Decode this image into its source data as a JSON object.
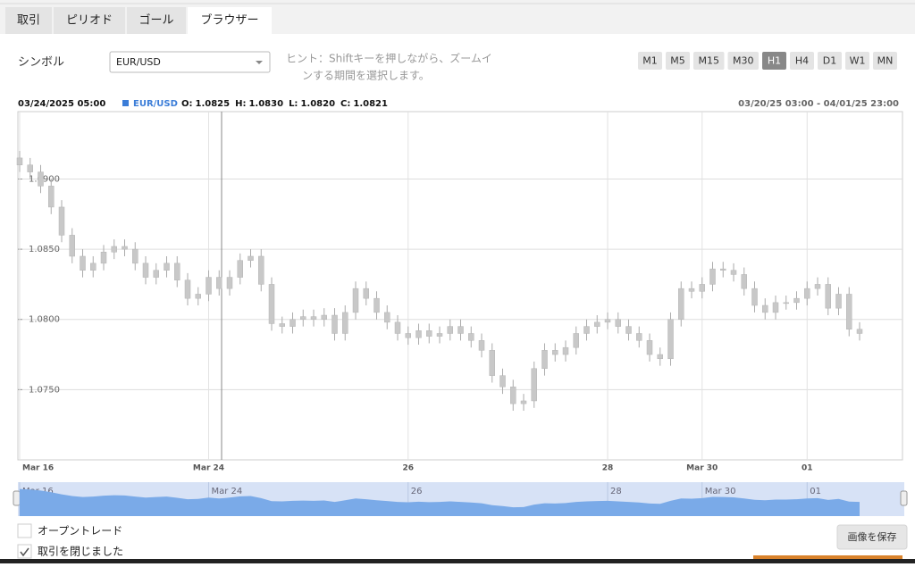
{
  "tabs": [
    "取引",
    "ピリオド",
    "ゴール",
    "ブラウザー"
  ],
  "active_tab": 3,
  "symbol_label": "シンボル",
  "symbol": "EUR/USD",
  "hint": [
    "ヒント：Shiftキーを押しながら、ズームイ",
    "ンする期間を選択します。"
  ],
  "timeframes": [
    "M1",
    "M5",
    "M15",
    "M30",
    "H1",
    "H4",
    "D1",
    "W1",
    "MN"
  ],
  "active_timeframe": 4,
  "info": {
    "date": "03/24/2025 05:00",
    "symbol": "EUR/USD",
    "fields": [
      {
        "label": "O:",
        "value": "1.0825"
      },
      {
        "label": "H:",
        "value": "1.0830"
      },
      {
        "label": "L:",
        "value": "1.0820"
      },
      {
        "label": "C:",
        "value": "1.0821"
      }
    ],
    "range": "03/20/25 03:00 - 04/01/25 23:00"
  },
  "chart": {
    "type": "candlestick",
    "color": "#c8c8c8",
    "navigator_color": "#7aaae8",
    "categories": [
      "Mar 16",
      null,
      null,
      null,
      null,
      null,
      null,
      null,
      null,
      null,
      null,
      null,
      null,
      null,
      null,
      null,
      null,
      null,
      "Mar 24",
      null,
      null,
      null,
      null,
      null,
      null,
      null,
      null,
      null,
      null,
      null,
      null,
      null,
      null,
      null,
      null,
      null,
      null,
      "26",
      null,
      null,
      null,
      null,
      null,
      null,
      null,
      null,
      null,
      null,
      null,
      null,
      null,
      null,
      null,
      null,
      null,
      null,
      "28",
      null,
      null,
      null,
      null,
      null,
      null,
      null,
      null,
      "Mar 30",
      null,
      null,
      null,
      null,
      null,
      null,
      null,
      null,
      null,
      "01",
      null,
      null,
      null,
      null,
      null
    ],
    "open": [
      1.0915,
      1.091,
      1.0905,
      1.0895,
      1.088,
      1.086,
      1.0845,
      1.0835,
      1.084,
      1.0848,
      1.0852,
      1.085,
      1.084,
      1.083,
      1.0835,
      1.084,
      1.0828,
      1.0815,
      1.0818,
      1.083,
      1.0822,
      1.083,
      1.0842,
      1.0845,
      1.0825,
      1.0797,
      1.0795,
      1.08,
      1.0802,
      1.08,
      1.0803,
      1.079,
      1.0805,
      1.0822,
      1.0815,
      1.0805,
      1.0798,
      1.079,
      1.0787,
      1.0792,
      1.0788,
      1.079,
      1.0795,
      1.079,
      1.0785,
      1.0778,
      1.076,
      1.0752,
      1.074,
      1.0742,
      1.0765,
      1.0778,
      1.0775,
      1.078,
      1.079,
      1.0795,
      1.0798,
      1.08,
      1.0795,
      1.079,
      1.0785,
      1.0775,
      1.0772,
      1.08,
      1.0822,
      1.082,
      1.0825,
      1.0836,
      1.0835,
      1.0832,
      1.0822,
      1.081,
      1.0805,
      1.0812,
      1.0812,
      1.0815,
      1.0822,
      1.0825,
      1.0808,
      1.0818,
      1.0793
    ],
    "high": [
      1.092,
      1.0915,
      1.091,
      1.09,
      1.0885,
      1.0865,
      1.085,
      1.0845,
      1.0853,
      1.0857,
      1.0857,
      1.0855,
      1.0845,
      1.084,
      1.0845,
      1.0845,
      1.0833,
      1.0823,
      1.0835,
      1.0835,
      1.0835,
      1.0847,
      1.085,
      1.085,
      1.083,
      1.0802,
      1.0805,
      1.0807,
      1.0807,
      1.0808,
      1.0808,
      1.081,
      1.0827,
      1.0827,
      1.082,
      1.081,
      1.0803,
      1.0795,
      1.0797,
      1.0797,
      1.0795,
      1.08,
      1.08,
      1.0795,
      1.079,
      1.0783,
      1.0765,
      1.0757,
      1.0747,
      1.077,
      1.0783,
      1.0783,
      1.0785,
      1.0795,
      1.08,
      1.0803,
      1.0805,
      1.0805,
      1.08,
      1.0795,
      1.079,
      1.078,
      1.0805,
      1.0827,
      1.0827,
      1.083,
      1.0841,
      1.0841,
      1.084,
      1.0837,
      1.0827,
      1.0815,
      1.0817,
      1.0817,
      1.082,
      1.0827,
      1.083,
      1.083,
      1.0823,
      1.0823,
      1.0798
    ],
    "low": [
      1.0905,
      1.09,
      1.089,
      1.0875,
      1.0855,
      1.084,
      1.083,
      1.083,
      1.0835,
      1.0843,
      1.0845,
      1.0835,
      1.0825,
      1.0825,
      1.083,
      1.0823,
      1.081,
      1.081,
      1.0813,
      1.0817,
      1.0817,
      1.0825,
      1.0837,
      1.082,
      1.0792,
      1.079,
      1.079,
      1.0795,
      1.0795,
      1.0795,
      1.0785,
      1.0785,
      1.08,
      1.081,
      1.08,
      1.0793,
      1.0785,
      1.0782,
      1.0782,
      1.0783,
      1.0783,
      1.0785,
      1.0785,
      1.078,
      1.0773,
      1.0755,
      1.0747,
      1.0735,
      1.0735,
      1.0737,
      1.076,
      1.077,
      1.077,
      1.0775,
      1.0785,
      1.079,
      1.0793,
      1.079,
      1.0785,
      1.078,
      1.077,
      1.0767,
      1.0767,
      1.0795,
      1.0815,
      1.0815,
      1.082,
      1.083,
      1.0827,
      1.0817,
      1.0805,
      1.08,
      1.08,
      1.0807,
      1.0807,
      1.081,
      1.0817,
      1.0803,
      1.0803,
      1.0788,
      1.0785
    ],
    "close": [
      1.091,
      1.0905,
      1.0895,
      1.088,
      1.086,
      1.0845,
      1.0835,
      1.084,
      1.0848,
      1.0852,
      1.085,
      1.084,
      1.083,
      1.0835,
      1.084,
      1.0828,
      1.0815,
      1.0818,
      1.083,
      1.0822,
      1.083,
      1.0842,
      1.0845,
      1.0825,
      1.0797,
      1.0795,
      1.08,
      1.0802,
      1.08,
      1.0803,
      1.079,
      1.0805,
      1.0822,
      1.0815,
      1.0805,
      1.0798,
      1.079,
      1.0787,
      1.0792,
      1.0788,
      1.079,
      1.0795,
      1.079,
      1.0785,
      1.0778,
      1.076,
      1.0752,
      1.074,
      1.0742,
      1.0765,
      1.0778,
      1.0775,
      1.078,
      1.079,
      1.0795,
      1.0798,
      1.08,
      1.0795,
      1.079,
      1.0785,
      1.0775,
      1.0772,
      1.08,
      1.0822,
      1.082,
      1.0825,
      1.0836,
      1.0835,
      1.0832,
      1.0822,
      1.081,
      1.0805,
      1.0812,
      1.0812,
      1.0815,
      1.0822,
      1.0825,
      1.0808,
      1.0818,
      1.0793,
      1.079
    ],
    "ylim": [
      1.07,
      1.0948
    ],
    "yticks": [
      {
        "value": 1.075,
        "label": "1.0750"
      },
      {
        "value": 1.08,
        "label": "1.0800"
      },
      {
        "value": 1.085,
        "label": "1.0850"
      },
      {
        "value": 1.09,
        "label": "1.0900"
      }
    ],
    "grid": true
  },
  "checkboxes": [
    {
      "label": "オープントレード",
      "checked": false
    },
    {
      "label": "取引を閉じました",
      "checked": true
    }
  ],
  "save_button": "画像を保存"
}
